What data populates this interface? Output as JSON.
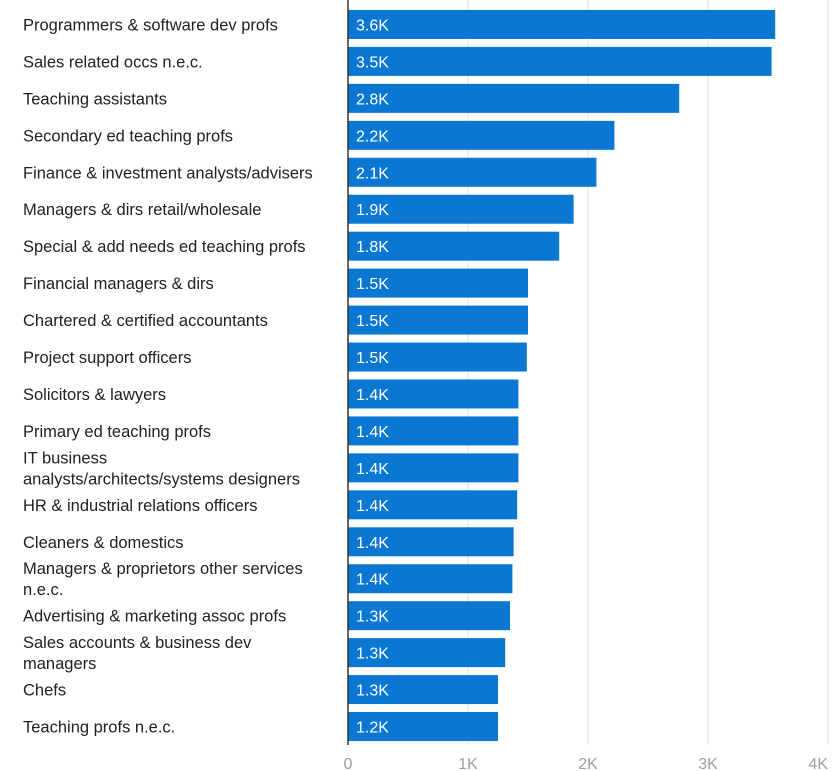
{
  "chart_data": {
    "type": "bar",
    "orientation": "horizontal",
    "categories": [
      "Programmers & software dev profs",
      "Sales related occs n.e.c.",
      "Teaching assistants",
      "Secondary ed teaching profs",
      "Finance & investment analysts/advisers",
      "Managers & dirs retail/wholesale",
      "Special & add needs ed teaching profs",
      "Financial managers & dirs",
      "Chartered & certified accountants",
      "Project support officers",
      "Solicitors & lawyers",
      "Primary ed teaching profs",
      "IT business analysts/architects/systems designers",
      "HR & industrial relations officers",
      "Cleaners & domestics",
      "Managers & proprietors other services n.e.c.",
      "Advertising & marketing assoc profs",
      "Sales accounts & business dev managers",
      "Chefs",
      "Teaching profs n.e.c."
    ],
    "category_lines": [
      [
        "Programmers & software dev profs"
      ],
      [
        "Sales related occs n.e.c."
      ],
      [
        "Teaching assistants"
      ],
      [
        "Secondary ed teaching profs"
      ],
      [
        "Finance & investment analysts/advisers"
      ],
      [
        "Managers & dirs retail/wholesale"
      ],
      [
        "Special & add needs ed teaching profs"
      ],
      [
        "Financial managers & dirs"
      ],
      [
        "Chartered & certified accountants"
      ],
      [
        "Project support officers"
      ],
      [
        "Solicitors & lawyers"
      ],
      [
        "Primary ed teaching profs"
      ],
      [
        "IT business",
        "analysts/architects/systems designers"
      ],
      [
        "HR & industrial relations officers"
      ],
      [
        "Cleaners & domestics"
      ],
      [
        "Managers & proprietors other services",
        "n.e.c."
      ],
      [
        "Advertising & marketing assoc profs"
      ],
      [
        "Sales accounts & business dev",
        "managers"
      ],
      [
        "Chefs"
      ],
      [
        "Teaching profs n.e.c."
      ]
    ],
    "values": [
      3560,
      3530,
      2760,
      2220,
      2070,
      1880,
      1760,
      1500,
      1500,
      1490,
      1420,
      1420,
      1420,
      1410,
      1380,
      1370,
      1350,
      1310,
      1250,
      1250
    ],
    "data_labels": [
      "3.6K",
      "3.5K",
      "2.8K",
      "2.2K",
      "2.1K",
      "1.9K",
      "1.8K",
      "1.5K",
      "1.5K",
      "1.5K",
      "1.4K",
      "1.4K",
      "1.4K",
      "1.4K",
      "1.4K",
      "1.4K",
      "1.3K",
      "1.3K",
      "1.3K",
      "1.2K"
    ],
    "xlim": [
      0,
      4000
    ],
    "x_ticks": [
      0,
      1000,
      2000,
      3000,
      4000
    ],
    "x_tick_labels": [
      "0",
      "1K",
      "2K",
      "3K",
      "4K"
    ],
    "grid": true,
    "bar_color": "#0a78d2",
    "label_color": "#ffffff",
    "grid_color": "#e0e0e0"
  }
}
